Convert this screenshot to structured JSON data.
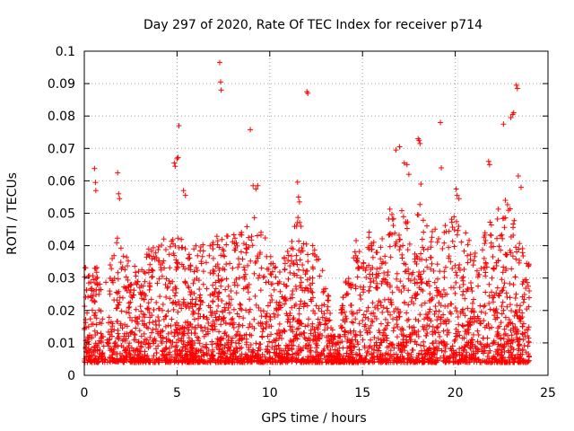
{
  "chart_data": {
    "type": "scatter",
    "title": "Day 297 of 2020, Rate Of TEC Index for receiver p714",
    "xlabel": "GPS time / hours",
    "ylabel": "ROTI / TECUs",
    "xlim": [
      0,
      25
    ],
    "ylim": [
      0,
      0.1
    ],
    "x_ticks": [
      "0",
      "5",
      "10",
      "15",
      "20",
      "25"
    ],
    "y_ticks": [
      "0",
      "0.01",
      "0.02",
      "0.03",
      "0.04",
      "0.05",
      "0.06",
      "0.07",
      "0.08",
      "0.09",
      "0.1"
    ],
    "grid": true,
    "marker": "plus",
    "series_color": "#ff0000",
    "series": [
      {
        "x": [
          0.55,
          0.6,
          0.62,
          1.8,
          1.85,
          1.9,
          4.85,
          4.9,
          5.0,
          5.05,
          5.1,
          5.35,
          5.45,
          7.3,
          7.35,
          7.38,
          8.95,
          9.1,
          9.25,
          9.35,
          11.5,
          11.55,
          11.6,
          12.0,
          12.05,
          16.8,
          17.0,
          17.25,
          17.4,
          17.5,
          18.0,
          18.05,
          18.1,
          18.15,
          19.2,
          19.25,
          20.05,
          20.1,
          20.2,
          21.8,
          21.85,
          22.6,
          22.7,
          23.0,
          23.1,
          23.15,
          23.3,
          23.35,
          23.4,
          23.55
        ],
        "y": [
          0.0638,
          0.0595,
          0.057,
          0.0625,
          0.056,
          0.0545,
          0.0655,
          0.0645,
          0.0668,
          0.0672,
          0.077,
          0.057,
          0.0555,
          0.0965,
          0.0905,
          0.088,
          0.0758,
          0.0585,
          0.0575,
          0.0585,
          0.0596,
          0.055,
          0.0535,
          0.0875,
          0.087,
          0.0695,
          0.0705,
          0.0655,
          0.065,
          0.062,
          0.073,
          0.0725,
          0.0715,
          0.059,
          0.078,
          0.064,
          0.0575,
          0.0555,
          0.0545,
          0.066,
          0.065,
          0.0775,
          0.054,
          0.0795,
          0.0805,
          0.081,
          0.0895,
          0.0885,
          0.0615,
          0.058
        ]
      }
    ]
  }
}
